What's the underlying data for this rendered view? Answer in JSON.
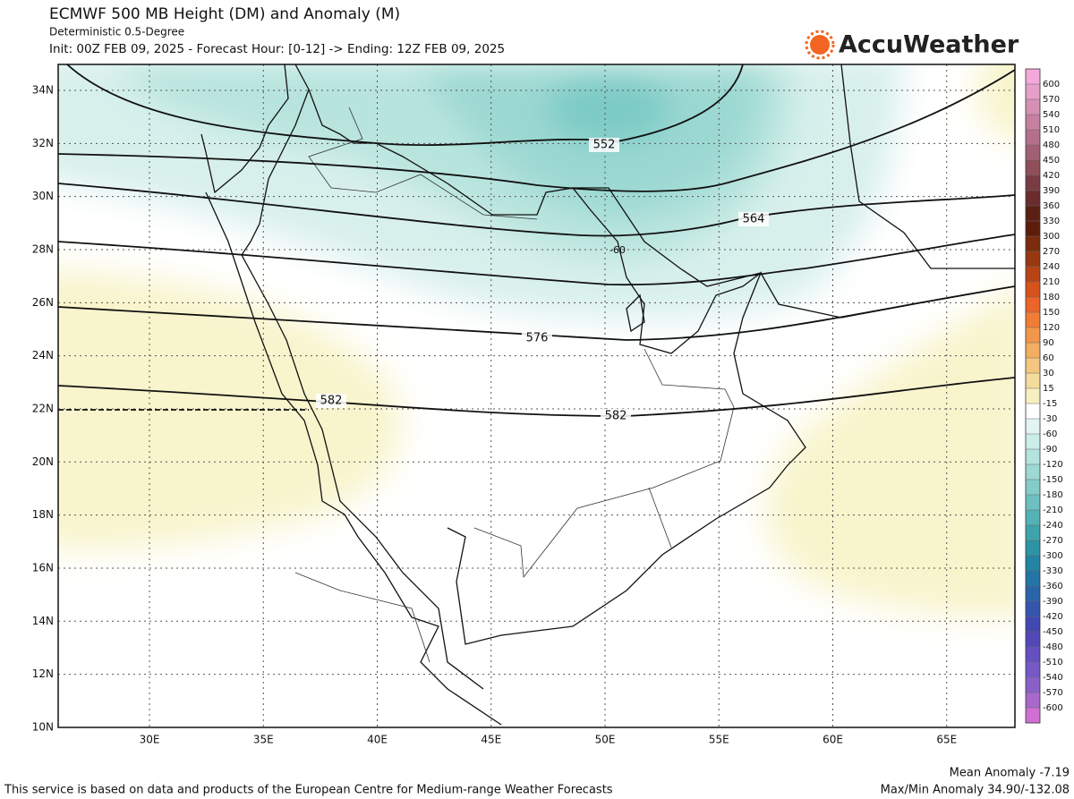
{
  "header": {
    "title": "ECMWF 500 MB Height (DM) and Anomaly (M)",
    "subtitle": "Deterministic 0.5-Degree",
    "init": "Init: 00Z FEB 09, 2025 - Forecast Hour: [0-12] -> Ending: 12Z FEB 09, 2025",
    "logo": "AccuWeather"
  },
  "map": {
    "lat_labels": [
      "34N",
      "32N",
      "30N",
      "28N",
      "26N",
      "24N",
      "22N",
      "20N",
      "18N",
      "16N",
      "14N",
      "12N",
      "10N"
    ],
    "lon_labels": [
      "30E",
      "35E",
      "40E",
      "45E",
      "50E",
      "55E",
      "60E",
      "65E"
    ],
    "contour_labels": [
      "552",
      "564",
      "576",
      "582",
      "582",
      "-60"
    ]
  },
  "colorbar": {
    "labels": [
      "600",
      "570",
      "540",
      "510",
      "480",
      "450",
      "420",
      "390",
      "360",
      "330",
      "300",
      "270",
      "240",
      "210",
      "180",
      "150",
      "120",
      "90",
      "60",
      "30",
      "15",
      "-15",
      "-30",
      "-60",
      "-90",
      "-120",
      "-150",
      "-180",
      "-210",
      "-240",
      "-270",
      "-300",
      "-330",
      "-360",
      "-390",
      "-420",
      "-450",
      "-480",
      "-510",
      "-540",
      "-570",
      "-600"
    ],
    "colors": [
      "#f4a8dc",
      "#e6a0c8",
      "#d690b4",
      "#c680a0",
      "#b4708a",
      "#a26074",
      "#8e4e5a",
      "#7a3c44",
      "#6a2c2c",
      "#5a2014",
      "#5e1c0c",
      "#7a2c0c",
      "#983810",
      "#b84416",
      "#d8521c",
      "#ec6428",
      "#f07c36",
      "#f2964a",
      "#f4ae62",
      "#f4c680",
      "#f4dc9c",
      "#f6f0c0",
      "#ffffff",
      "#e4f4f2",
      "#cceeea",
      "#b4e4e0",
      "#9cd8d4",
      "#84ccca",
      "#6cc0c0",
      "#54b2b6",
      "#3ea4ac",
      "#2c94a4",
      "#2484a4",
      "#2474a6",
      "#2a64aa",
      "#3454ae",
      "#4248b2",
      "#5248b8",
      "#6450c0",
      "#7658c6",
      "#8a60c8",
      "#a868cc",
      "#d070d4"
    ]
  },
  "footer": {
    "mean": "Mean Anomaly -7.19",
    "credit": "This service is based on data and products of the European Centre for Medium-range Weather Forecasts",
    "maxmin": "Max/Min Anomaly 34.90/-132.08"
  }
}
